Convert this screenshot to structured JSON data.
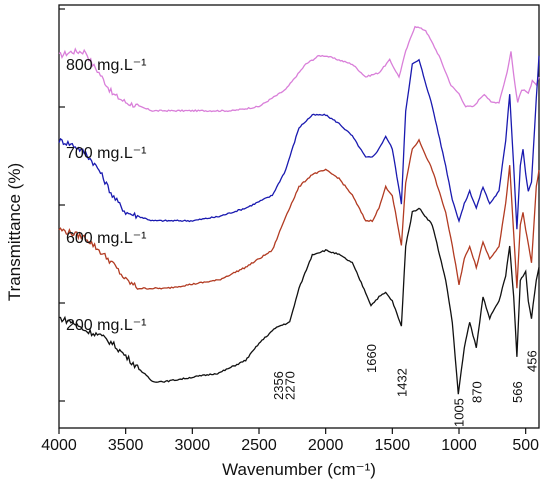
{
  "chart_data": {
    "type": "line",
    "title": "",
    "xlabel": "Wavenumber (cm⁻¹)",
    "ylabel": "Transmittance (%)",
    "xlim": [
      4000,
      400
    ],
    "x_reversed": true,
    "xticks": [
      4000,
      3500,
      3000,
      2500,
      2000,
      1500,
      1000,
      500
    ],
    "y_tick_labels_shown": false,
    "grid": false,
    "legend": "inline labels above each spectrum",
    "series": [
      {
        "name": "800 mg.L⁻¹",
        "color": "#d97fd9",
        "points": [
          [
            4000,
            88
          ],
          [
            3900,
            89
          ],
          [
            3800,
            89
          ],
          [
            3750,
            86
          ],
          [
            3700,
            84
          ],
          [
            3600,
            79
          ],
          [
            3500,
            77
          ],
          [
            3300,
            75
          ],
          [
            3000,
            75
          ],
          [
            2700,
            75
          ],
          [
            2500,
            76
          ],
          [
            2300,
            80
          ],
          [
            2150,
            86
          ],
          [
            2050,
            88
          ],
          [
            2000,
            88
          ],
          [
            1800,
            86
          ],
          [
            1700,
            83
          ],
          [
            1600,
            84
          ],
          [
            1520,
            87
          ],
          [
            1450,
            83
          ],
          [
            1400,
            89
          ],
          [
            1330,
            95
          ],
          [
            1250,
            94
          ],
          [
            1150,
            88
          ],
          [
            1060,
            81
          ],
          [
            1000,
            79
          ],
          [
            950,
            76
          ],
          [
            890,
            76
          ],
          [
            840,
            78
          ],
          [
            810,
            79
          ],
          [
            760,
            77
          ],
          [
            700,
            77
          ],
          [
            640,
            84
          ],
          [
            610,
            89
          ],
          [
            580,
            81
          ],
          [
            560,
            77
          ],
          [
            530,
            80
          ],
          [
            510,
            80
          ],
          [
            480,
            79
          ],
          [
            450,
            82
          ],
          [
            420,
            81
          ],
          [
            400,
            83
          ]
        ]
      },
      {
        "name": "700 mg.L⁻¹",
        "color": "#1a1ab0",
        "points": [
          [
            4000,
            68
          ],
          [
            3900,
            67
          ],
          [
            3800,
            65
          ],
          [
            3700,
            61
          ],
          [
            3600,
            55
          ],
          [
            3500,
            51
          ],
          [
            3400,
            50
          ],
          [
            3300,
            49
          ],
          [
            3000,
            49
          ],
          [
            2800,
            50
          ],
          [
            2600,
            52
          ],
          [
            2400,
            55
          ],
          [
            2300,
            61
          ],
          [
            2200,
            71
          ],
          [
            2100,
            74
          ],
          [
            2000,
            74
          ],
          [
            1900,
            72
          ],
          [
            1800,
            69
          ],
          [
            1700,
            64
          ],
          [
            1650,
            64
          ],
          [
            1600,
            66
          ],
          [
            1550,
            69
          ],
          [
            1500,
            66
          ],
          [
            1432,
            53
          ],
          [
            1400,
            75
          ],
          [
            1350,
            86
          ],
          [
            1300,
            87
          ],
          [
            1200,
            76
          ],
          [
            1100,
            62
          ],
          [
            1050,
            54
          ],
          [
            1000,
            49
          ],
          [
            960,
            53
          ],
          [
            920,
            56
          ],
          [
            870,
            52
          ],
          [
            820,
            57
          ],
          [
            770,
            53
          ],
          [
            700,
            56
          ],
          [
            650,
            68
          ],
          [
            620,
            79
          ],
          [
            590,
            62
          ],
          [
            566,
            47
          ],
          [
            540,
            62
          ],
          [
            520,
            66
          ],
          [
            500,
            60
          ],
          [
            480,
            56
          ],
          [
            456,
            58
          ],
          [
            420,
            78
          ],
          [
            400,
            88
          ]
        ]
      },
      {
        "name": "600 mg.L⁻¹",
        "color": "#b23b22",
        "points": [
          [
            4000,
            47
          ],
          [
            3800,
            45
          ],
          [
            3600,
            39
          ],
          [
            3500,
            35
          ],
          [
            3400,
            33
          ],
          [
            3200,
            33
          ],
          [
            3000,
            34
          ],
          [
            2800,
            35
          ],
          [
            2600,
            38
          ],
          [
            2400,
            42
          ],
          [
            2300,
            50
          ],
          [
            2200,
            57
          ],
          [
            2100,
            60
          ],
          [
            2000,
            61
          ],
          [
            1900,
            59
          ],
          [
            1800,
            55
          ],
          [
            1700,
            49
          ],
          [
            1650,
            49
          ],
          [
            1600,
            52
          ],
          [
            1550,
            57
          ],
          [
            1500,
            55
          ],
          [
            1432,
            43
          ],
          [
            1400,
            58
          ],
          [
            1350,
            66
          ],
          [
            1300,
            68
          ],
          [
            1200,
            61
          ],
          [
            1100,
            51
          ],
          [
            1050,
            43
          ],
          [
            1000,
            34
          ],
          [
            960,
            40
          ],
          [
            920,
            43
          ],
          [
            870,
            38
          ],
          [
            820,
            44
          ],
          [
            770,
            40
          ],
          [
            700,
            43
          ],
          [
            650,
            53
          ],
          [
            620,
            62
          ],
          [
            590,
            46
          ],
          [
            566,
            33
          ],
          [
            540,
            48
          ],
          [
            520,
            51
          ],
          [
            500,
            47
          ],
          [
            456,
            39
          ],
          [
            420,
            57
          ],
          [
            400,
            61
          ]
        ]
      },
      {
        "name": "200 mg.L⁻¹",
        "color": "#111111",
        "points": [
          [
            4000,
            26
          ],
          [
            3900,
            25
          ],
          [
            3800,
            23
          ],
          [
            3700,
            22
          ],
          [
            3600,
            20
          ],
          [
            3500,
            17
          ],
          [
            3400,
            14
          ],
          [
            3300,
            11
          ],
          [
            3200,
            11
          ],
          [
            3000,
            12
          ],
          [
            2800,
            13
          ],
          [
            2600,
            16
          ],
          [
            2500,
            20
          ],
          [
            2400,
            23
          ],
          [
            2356,
            24
          ],
          [
            2270,
            25
          ],
          [
            2200,
            33
          ],
          [
            2100,
            41
          ],
          [
            2000,
            42
          ],
          [
            1900,
            41
          ],
          [
            1800,
            39
          ],
          [
            1700,
            32
          ],
          [
            1660,
            29
          ],
          [
            1600,
            31
          ],
          [
            1550,
            32
          ],
          [
            1500,
            30
          ],
          [
            1432,
            24
          ],
          [
            1400,
            43
          ],
          [
            1350,
            51
          ],
          [
            1300,
            52
          ],
          [
            1200,
            48
          ],
          [
            1100,
            35
          ],
          [
            1050,
            25
          ],
          [
            1005,
            8
          ],
          [
            960,
            19
          ],
          [
            920,
            25
          ],
          [
            870,
            19
          ],
          [
            820,
            31
          ],
          [
            770,
            26
          ],
          [
            700,
            30
          ],
          [
            650,
            36
          ],
          [
            620,
            43
          ],
          [
            590,
            31
          ],
          [
            566,
            17
          ],
          [
            540,
            35
          ],
          [
            500,
            37
          ],
          [
            480,
            30
          ],
          [
            456,
            26
          ],
          [
            420,
            35
          ],
          [
            400,
            38
          ]
        ]
      }
    ],
    "peak_labels": [
      "2356",
      "2270",
      "1660",
      "1432",
      "1005",
      "870",
      "566",
      "456"
    ],
    "peak_positions": [
      2356,
      2270,
      1660,
      1432,
      1005,
      870,
      566,
      456
    ]
  }
}
